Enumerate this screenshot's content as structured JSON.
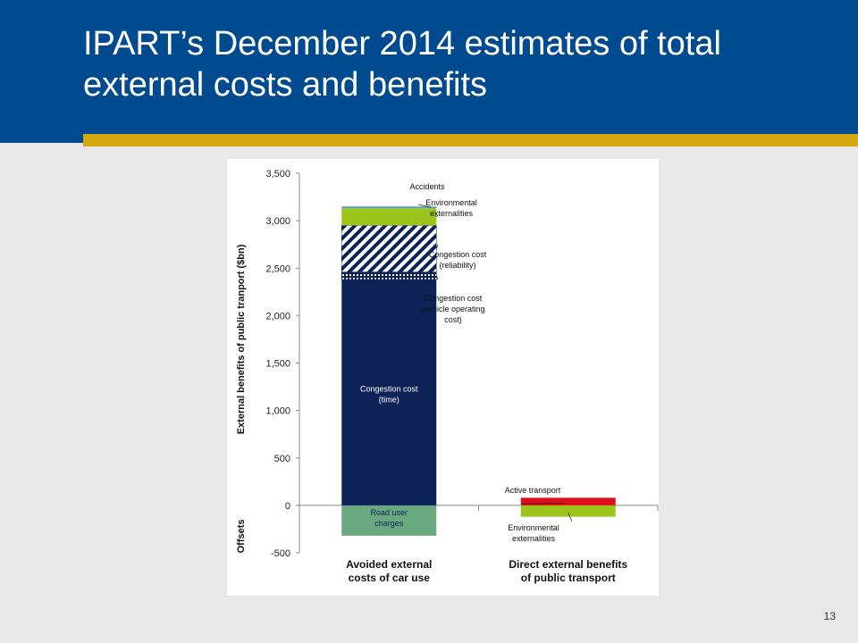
{
  "slide": {
    "title": "IPART’s December 2014 estimates of total external costs and benefits",
    "page_number": "13"
  },
  "colors": {
    "header_bg": "#004a8f",
    "accent_bar": "#d6a80f",
    "congestion_time": "#0d2256",
    "environmental": "#9dc41a",
    "active_transport": "#e00f1a",
    "road_user_charges": "#6aa880",
    "hatch_navy": "#0d2256",
    "accidents": "#5ea6b8"
  },
  "chart_data": {
    "type": "bar",
    "stacked": true,
    "ylabel": "External benefits of public tranport ($bn)",
    "ylabel_negative": "Offsets",
    "ylim": [
      -500,
      3500
    ],
    "yticks": [
      -500,
      0,
      500,
      1000,
      1500,
      2000,
      2500,
      3000,
      3500
    ],
    "ytick_labels": [
      "-500",
      "0",
      "500",
      "1,000",
      "1,500",
      "2,000",
      "2,500",
      "3,000",
      "3,500"
    ],
    "grid": false,
    "categories": [
      "Avoided external costs of car use",
      "Direct external benefits of public transport"
    ],
    "category_labels": [
      [
        "Avoided external",
        "costs of car use"
      ],
      [
        "Direct external benefits",
        "of public transport"
      ]
    ],
    "series": [
      {
        "key": "road_user",
        "name": "Road user charges",
        "values": [
          -320,
          0
        ],
        "fill": "solid",
        "color": "#6aa880"
      },
      {
        "key": "env_neg",
        "name": "Environmental externalities",
        "values": [
          0,
          -120
        ],
        "fill": "solid",
        "color": "#9dc41a"
      },
      {
        "key": "cong_time",
        "name": "Congestion cost (time)",
        "values": [
          2380,
          0
        ],
        "fill": "solid",
        "color": "#0d2256"
      },
      {
        "key": "cong_voc",
        "name": "Congestion cost (vehicle operating cost)",
        "values": [
          80,
          0
        ],
        "fill": "grid",
        "color": "#0d2256"
      },
      {
        "key": "cong_rel",
        "name": "Congestion cost (reliability)",
        "values": [
          490,
          0
        ],
        "fill": "hatch",
        "color": "#0d2256"
      },
      {
        "key": "env_pos",
        "name": "Environmental externalities",
        "values": [
          180,
          0
        ],
        "fill": "solid",
        "color": "#9dc41a"
      },
      {
        "key": "accidents",
        "name": "Accidents",
        "values": [
          20,
          0
        ],
        "fill": "solid",
        "color": "#5ea6b8"
      },
      {
        "key": "active",
        "name": "Active transport",
        "values": [
          0,
          80
        ],
        "fill": "solid",
        "color": "#e00f1a"
      }
    ],
    "annotations": [
      {
        "target": "cong_time",
        "lines": [
          "Congestion cost",
          "(time)"
        ],
        "style": "inside",
        "color": "#ffffff"
      },
      {
        "target": "road_user",
        "lines": [
          "Road user",
          "charges"
        ],
        "style": "inside",
        "color": "#0d2256"
      },
      {
        "target": "accidents",
        "lines": [
          "Accidents"
        ],
        "style": "callout"
      },
      {
        "target": "env_pos",
        "lines": [
          "Environmental",
          "externalities"
        ],
        "style": "callout"
      },
      {
        "target": "cong_rel",
        "lines": [
          "Congestion cost",
          "(reliability)"
        ],
        "style": "callout"
      },
      {
        "target": "cong_voc",
        "lines": [
          "Congestion cost",
          "(vehicle operating",
          "cost)"
        ],
        "style": "callout"
      },
      {
        "target": "active",
        "lines": [
          "Active transport"
        ],
        "style": "callout"
      },
      {
        "target": "env_neg",
        "lines": [
          "Environmental",
          "externalities"
        ],
        "style": "callout"
      }
    ]
  }
}
